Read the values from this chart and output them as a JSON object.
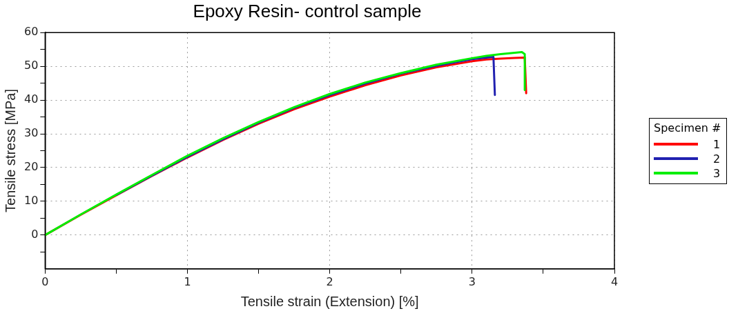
{
  "chart_data": {
    "type": "line",
    "title": "Epoxy Resin- control sample",
    "xlabel": "Tensile strain (Extension) [%]",
    "ylabel": "Tensile stress [MPa]",
    "legend_title": "Specimen #",
    "legend": "right",
    "grid": true,
    "line_style": "solid",
    "marker": "none",
    "xlim": [
      0,
      4
    ],
    "xticks": [
      0,
      {
        "value": 0.5,
        "label": null
      },
      1,
      {
        "value": 1.5,
        "label": null
      },
      2,
      {
        "value": 2.5,
        "label": null
      },
      3,
      {
        "value": 3.5,
        "label": null
      },
      4
    ],
    "ylim": [
      -10,
      60
    ],
    "yticks": [
      {
        "value": -5,
        "label": null
      },
      0,
      {
        "value": 5,
        "label": null
      },
      10,
      {
        "value": 15,
        "label": null
      },
      20,
      {
        "value": 25,
        "label": null
      },
      30,
      {
        "value": 35,
        "label": null
      },
      40,
      {
        "value": 45,
        "label": null
      },
      50,
      {
        "value": 55,
        "label": null
      },
      60
    ],
    "series": [
      {
        "name": "1",
        "color": "#ff0000",
        "x": [
          0,
          0.25,
          0.5,
          0.75,
          1,
          1.25,
          1.5,
          1.75,
          2,
          2.25,
          2.5,
          2.75,
          3,
          3.1,
          3.2,
          3.3,
          3.37,
          3.38
        ],
        "values": [
          0,
          6,
          11.8,
          17.5,
          23,
          28.2,
          33,
          37.3,
          41,
          44.4,
          47.3,
          49.7,
          51.5,
          52,
          52.3,
          52.5,
          52.6,
          42
        ]
      },
      {
        "name": "2",
        "color": "#2020b0",
        "x": [
          0.5,
          0.75,
          1,
          1.25,
          1.5,
          1.75,
          2,
          2.25,
          2.5,
          2.75,
          3,
          3.1,
          3.15,
          3.16
        ],
        "values": [
          11.9,
          17.6,
          23.2,
          28.4,
          33.3,
          37.7,
          41.5,
          44.9,
          47.8,
          50.2,
          52.1,
          52.6,
          52.8,
          41.5
        ]
      },
      {
        "name": "3",
        "color": "#00ee00",
        "x": [
          0,
          0.25,
          0.5,
          0.75,
          1,
          1.25,
          1.5,
          1.75,
          2,
          2.25,
          2.5,
          2.75,
          3,
          3.1,
          3.2,
          3.3,
          3.35,
          3.37,
          3.37
        ],
        "values": [
          0,
          6.1,
          12,
          17.8,
          23.5,
          28.7,
          33.5,
          37.9,
          41.8,
          45.2,
          48,
          50.5,
          52.4,
          53.1,
          53.6,
          54,
          54.2,
          53.6,
          43
        ]
      }
    ]
  }
}
